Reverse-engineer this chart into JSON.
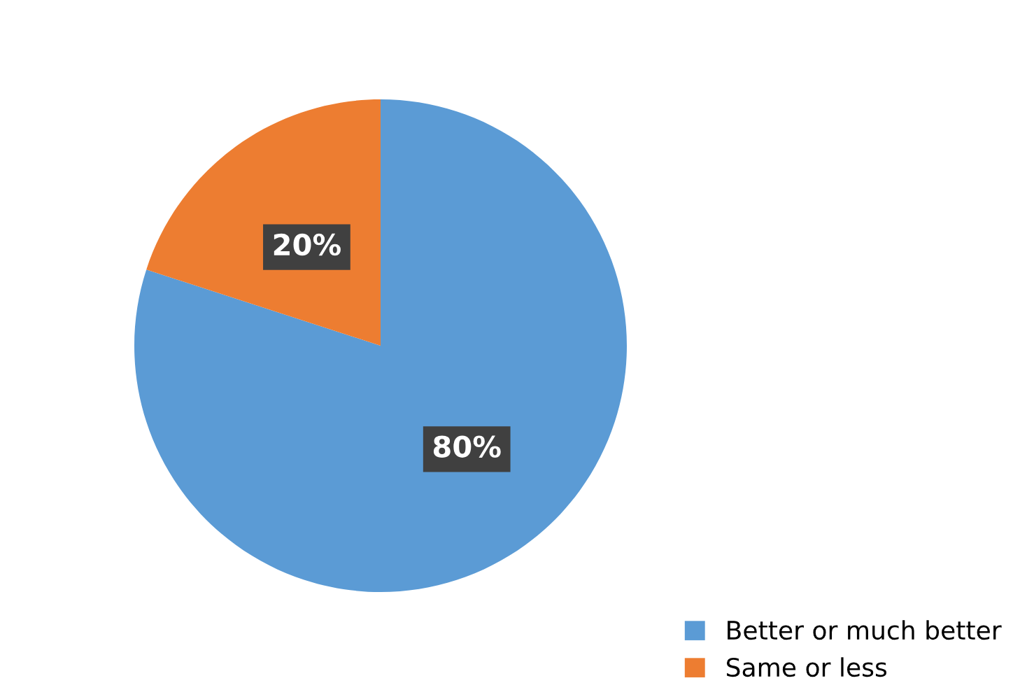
{
  "chart_data": {
    "type": "pie",
    "categories": [
      "Better or much better",
      "Same or less"
    ],
    "values": [
      80,
      20
    ],
    "colors": [
      "#5b9bd5",
      "#ed7d31"
    ],
    "value_labels": [
      "80%",
      "20%"
    ],
    "legend": "bottom right"
  }
}
